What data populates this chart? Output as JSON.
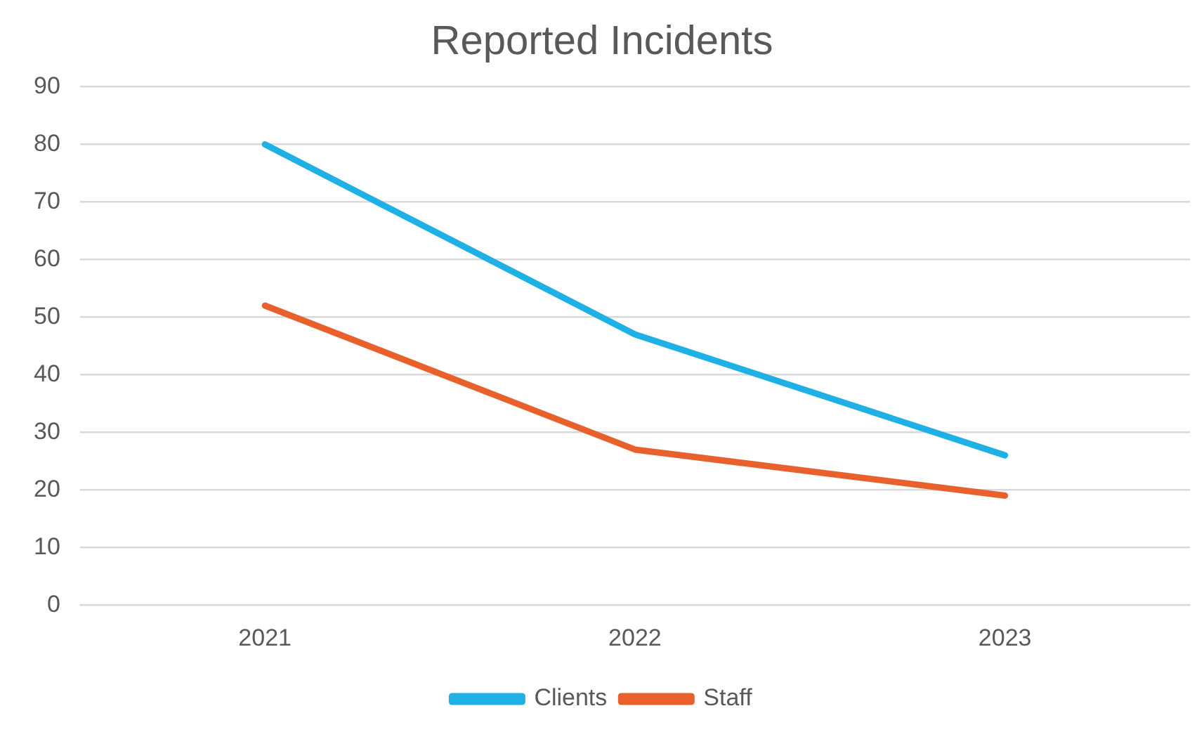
{
  "chart_data": {
    "type": "line",
    "title": "Reported Incidents",
    "categories": [
      "2021",
      "2022",
      "2023"
    ],
    "series": [
      {
        "name": "Clients",
        "color": "#1fb0e6",
        "values": [
          80,
          47,
          26
        ]
      },
      {
        "name": "Staff",
        "color": "#e8612c",
        "values": [
          52,
          27,
          19
        ]
      }
    ],
    "ylim": [
      0,
      90
    ],
    "yticks": [
      0,
      10,
      20,
      30,
      40,
      50,
      60,
      70,
      80,
      90
    ],
    "grid": "y",
    "legend": "bottom",
    "marker": "none",
    "line_style": "solid"
  }
}
